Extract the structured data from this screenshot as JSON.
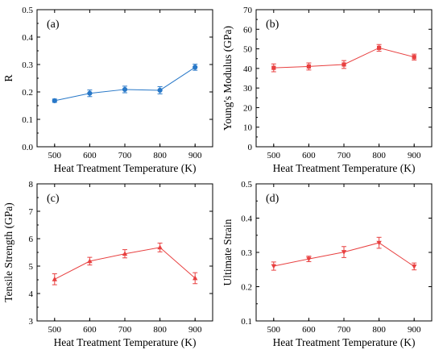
{
  "chart_data": [
    {
      "type": "line",
      "panel_label": "(a)",
      "xlabel": "Heat Treatment Temperature (K)",
      "ylabel": "R",
      "xlim": [
        450,
        950
      ],
      "ylim": [
        0.0,
        0.5
      ],
      "xticks": [
        500,
        600,
        700,
        800,
        900
      ],
      "yticks": [
        "0.0",
        "0.1",
        "0.2",
        "0.3",
        "0.4",
        "0.5"
      ],
      "marker": "circle",
      "color": "#2878c8",
      "x": [
        500,
        600,
        700,
        800,
        900
      ],
      "y": [
        0.168,
        0.195,
        0.209,
        0.206,
        0.29
      ],
      "yerr": [
        0.006,
        0.012,
        0.012,
        0.013,
        0.011
      ]
    },
    {
      "type": "line",
      "panel_label": "(b)",
      "xlabel": "Heat Treatment Temperature (K)",
      "ylabel": "Young's Modulus (GPa)",
      "xlim": [
        450,
        950
      ],
      "ylim": [
        0,
        70
      ],
      "xticks": [
        500,
        600,
        700,
        800,
        900
      ],
      "yticks": [
        "0",
        "10",
        "20",
        "30",
        "40",
        "50",
        "60",
        "70"
      ],
      "marker": "square",
      "color": "#e84040",
      "x": [
        500,
        600,
        700,
        800,
        900
      ],
      "y": [
        40.3,
        41.0,
        42.0,
        50.5,
        45.8
      ],
      "yerr": [
        2.0,
        1.8,
        2.0,
        1.7,
        1.5
      ]
    },
    {
      "type": "line",
      "panel_label": "(c)",
      "xlabel": "Heat Treatment Temperature (K)",
      "ylabel": "Tensile Strength (GPa)",
      "xlim": [
        450,
        950
      ],
      "ylim": [
        3,
        8
      ],
      "xticks": [
        500,
        600,
        700,
        800,
        900
      ],
      "yticks": [
        "3",
        "4",
        "5",
        "6",
        "7",
        "8"
      ],
      "marker": "triangle",
      "color": "#e84040",
      "x": [
        500,
        600,
        700,
        800,
        900
      ],
      "y": [
        4.52,
        5.18,
        5.45,
        5.68,
        4.56
      ],
      "yerr": [
        0.2,
        0.14,
        0.15,
        0.16,
        0.2
      ]
    },
    {
      "type": "line",
      "panel_label": "(d)",
      "xlabel": "Heat Treatment Temperature (K)",
      "ylabel": "Ultimate Strain",
      "xlim": [
        450,
        950
      ],
      "ylim": [
        0.1,
        0.5
      ],
      "xticks": [
        500,
        600,
        700,
        800,
        900
      ],
      "yticks": [
        "0.1",
        "0.2",
        "0.3",
        "0.4",
        "0.5"
      ],
      "marker": "triangle-down",
      "color": "#e84040",
      "x": [
        500,
        600,
        700,
        800,
        900
      ],
      "y": [
        0.26,
        0.281,
        0.301,
        0.328,
        0.259
      ],
      "yerr": [
        0.012,
        0.008,
        0.016,
        0.016,
        0.01
      ]
    }
  ]
}
